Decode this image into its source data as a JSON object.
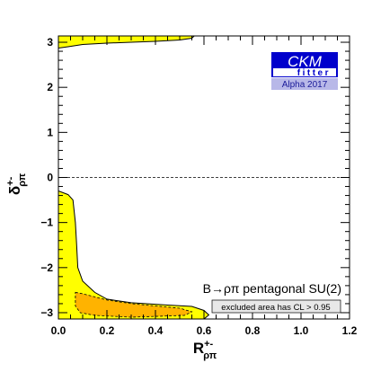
{
  "chart_data": {
    "type": "contour",
    "xlabel": "R",
    "xlabel_sup": "+-",
    "xlabel_sub": "ρπ",
    "ylabel": "δ",
    "ylabel_sup": "+-",
    "ylabel_sub": "ρπ",
    "xlim": [
      0.0,
      1.2
    ],
    "ylim": [
      -3.14,
      3.14
    ],
    "x_ticks": [
      0.0,
      0.2,
      0.4,
      0.6,
      0.8,
      1.0,
      1.2
    ],
    "x_tick_labels": [
      "0.0",
      "0.2",
      "0.4",
      "0.6",
      "0.8",
      "1.0",
      "1.2"
    ],
    "y_ticks": [
      -3,
      -2,
      -1,
      0,
      1,
      2,
      3
    ],
    "y_tick_labels": [
      "−3",
      "−2",
      "−1",
      "0",
      "1",
      "2",
      "3"
    ],
    "reference_line_y": 0,
    "annotation": "B→ρπ pentagonal SU(2)",
    "legend_box": "excluded area has CL > 0.95",
    "logo": {
      "top": "CKM",
      "bottom": "fitter",
      "caption": "Alpha 2017"
    },
    "colors": {
      "region_outer": "#ffff00",
      "region_inner": "#ffb300",
      "logo_blue": "#0000cc",
      "logo_caption_bg": "#b8b8e8",
      "legend_bg": "#e8e8e8"
    },
    "regions": [
      {
        "name": "outer-top",
        "fill": "#ffff00",
        "points": [
          [
            0.0,
            3.14
          ],
          [
            0.0,
            2.87
          ],
          [
            0.04,
            2.9
          ],
          [
            0.1,
            2.95
          ],
          [
            0.2,
            2.98
          ],
          [
            0.3,
            3.0
          ],
          [
            0.4,
            3.02
          ],
          [
            0.5,
            3.05
          ],
          [
            0.55,
            3.09
          ],
          [
            0.56,
            3.14
          ]
        ]
      },
      {
        "name": "outer-bottom",
        "fill": "#ffff00",
        "points": [
          [
            0.0,
            -0.3
          ],
          [
            0.04,
            -0.38
          ],
          [
            0.06,
            -0.5
          ],
          [
            0.07,
            -1.0
          ],
          [
            0.075,
            -1.5
          ],
          [
            0.08,
            -2.0
          ],
          [
            0.1,
            -2.3
          ],
          [
            0.15,
            -2.55
          ],
          [
            0.2,
            -2.7
          ],
          [
            0.3,
            -2.78
          ],
          [
            0.45,
            -2.83
          ],
          [
            0.55,
            -2.86
          ],
          [
            0.6,
            -2.95
          ],
          [
            0.62,
            -3.05
          ],
          [
            0.6,
            -3.14
          ],
          [
            0.0,
            -3.14
          ]
        ]
      },
      {
        "name": "inner-bottom",
        "fill": "#ffb300",
        "dashed": true,
        "points": [
          [
            0.07,
            -2.55
          ],
          [
            0.1,
            -2.58
          ],
          [
            0.2,
            -2.72
          ],
          [
            0.3,
            -2.8
          ],
          [
            0.4,
            -2.85
          ],
          [
            0.5,
            -2.9
          ],
          [
            0.55,
            -2.98
          ],
          [
            0.52,
            -3.06
          ],
          [
            0.3,
            -3.1
          ],
          [
            0.15,
            -3.06
          ],
          [
            0.09,
            -3.0
          ],
          [
            0.07,
            -2.85
          ]
        ]
      }
    ]
  }
}
